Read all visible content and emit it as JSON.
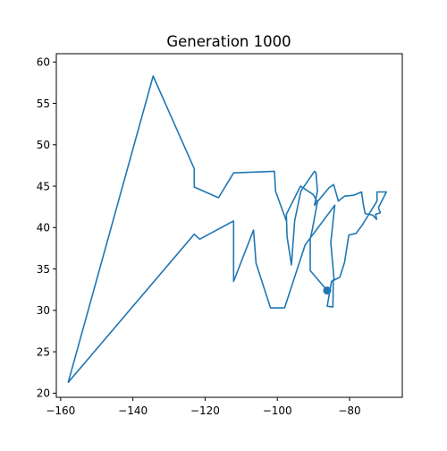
{
  "chart_data": {
    "type": "line",
    "title": "Generation 1000",
    "xlabel": "",
    "ylabel": "",
    "xlim": [
      -161.2,
      -65.4
    ],
    "ylim": [
      19.5,
      61.0
    ],
    "xticks": [
      -160,
      -140,
      -120,
      -100,
      -80
    ],
    "yticks": [
      20,
      25,
      30,
      35,
      40,
      45,
      50,
      55,
      60
    ],
    "xtick_labels": [
      "−160",
      "−140",
      "−120",
      "−100",
      "−80"
    ],
    "ytick_labels": [
      "20",
      "25",
      "30",
      "35",
      "40",
      "45",
      "50",
      "55",
      "60"
    ],
    "grid": false,
    "legend": false,
    "color": "#1f77b4",
    "start_marker": {
      "x": -86.2,
      "y": 32.4
    },
    "series": [
      {
        "values_x": [
          -86.2,
          -90.9,
          -90.9,
          -90.3,
          -88.9,
          -90.1,
          -93.6,
          -97.5,
          -97.3,
          -96.1,
          -95.2,
          -93.5,
          -89.7,
          -89.3,
          -88.9,
          -89.7,
          -85.7,
          -84.4,
          -83.1,
          -81.4,
          -78.9,
          -76.7,
          -76.2,
          -75.7,
          -73.6,
          -72.5,
          -72.8,
          -71.5,
          -72.0,
          -69.8,
          -72.4,
          -72.4,
          -73.1,
          -76.5,
          -78.2,
          -80.2,
          -81.4,
          -82.7,
          -84.1,
          -85.0,
          -86.2,
          -84.6,
          -84.5,
          -84.3,
          -85.2,
          -84.1,
          -92.3,
          -98.0,
          -101.9,
          -105.9,
          -106.6,
          -112.1,
          -112.1,
          -121.5,
          -123.0,
          -157.9,
          -134.4,
          -123.0,
          -123.0,
          -116.3,
          -112.1,
          -100.8,
          -100.5,
          -97.5
        ],
        "values_y": [
          32.4,
          34.8,
          38.6,
          39.8,
          43.1,
          44.0,
          45.0,
          41.6,
          38.9,
          35.5,
          40.8,
          44.4,
          46.8,
          46.6,
          44.4,
          42.7,
          44.8,
          45.2,
          43.2,
          43.8,
          43.9,
          44.3,
          42.8,
          41.7,
          41.5,
          41.0,
          41.6,
          41.8,
          42.4,
          44.3,
          44.3,
          43.2,
          42.7,
          40.3,
          39.3,
          39.1,
          35.8,
          34.0,
          33.7,
          33.5,
          30.5,
          30.4,
          33.7,
          33.7,
          38.2,
          42.7,
          37.9,
          30.3,
          30.3,
          35.7,
          39.7,
          33.5,
          40.8,
          38.6,
          39.2,
          21.3,
          58.3,
          47.1,
          44.9,
          43.6,
          46.6,
          46.8,
          44.4,
          40.8
        ]
      }
    ]
  }
}
